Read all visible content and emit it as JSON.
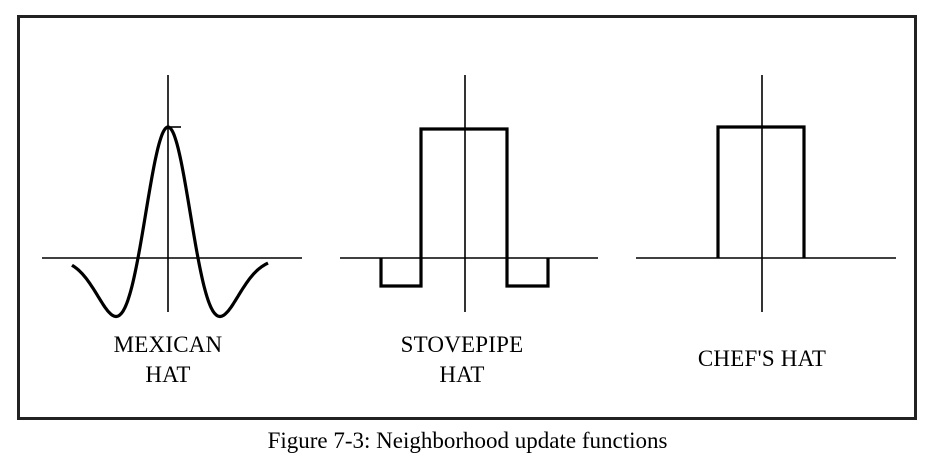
{
  "panels": [
    {
      "id": "mexican-hat",
      "label_lines": [
        "MEXICAN",
        "HAT"
      ]
    },
    {
      "id": "stovepipe-hat",
      "label_lines": [
        "STOVEPIPE",
        "HAT"
      ]
    },
    {
      "id": "chefs-hat",
      "label_lines": [
        "CHEF'S HAT"
      ]
    }
  ],
  "caption": "Figure 7-3: Neighborhood update functions"
}
